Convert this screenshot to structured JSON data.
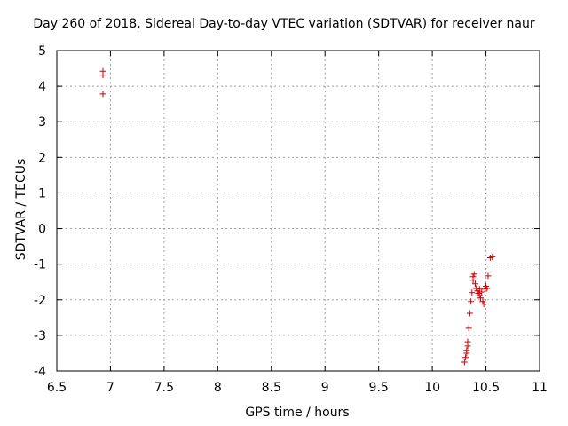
{
  "chart_data": {
    "type": "scatter",
    "title": "Day 260 of 2018, Sidereal Day-to-day VTEC variation (SDTVAR) for receiver naur",
    "xlabel": "GPS time / hours",
    "ylabel": "SDTVAR / TECUs",
    "xlim": [
      6.5,
      11
    ],
    "ylim": [
      -4,
      5
    ],
    "grid": true,
    "xticks": [
      6.5,
      7,
      7.5,
      8,
      8.5,
      9,
      9.5,
      10,
      10.5,
      11
    ],
    "xtick_labels": [
      "6.5",
      "7",
      "7.5",
      "8",
      "8.5",
      "9",
      "9.5",
      "10",
      "10.5",
      "11"
    ],
    "yticks": [
      -4,
      -3,
      -2,
      -1,
      0,
      1,
      2,
      3,
      4,
      5
    ],
    "ytick_labels": [
      "-4",
      "-3",
      "-2",
      "-1",
      "0",
      "1",
      "2",
      "3",
      "4",
      "5"
    ],
    "marker": "+",
    "color": "#cc0000",
    "series": [
      {
        "name": "naur",
        "points": [
          [
            6.93,
            4.42
          ],
          [
            6.93,
            4.31
          ],
          [
            6.93,
            3.78
          ],
          [
            10.3,
            -3.75
          ],
          [
            10.31,
            -3.62
          ],
          [
            10.32,
            -3.5
          ],
          [
            10.32,
            -3.42
          ],
          [
            10.33,
            -3.3
          ],
          [
            10.33,
            -3.18
          ],
          [
            10.34,
            -2.8
          ],
          [
            10.35,
            -2.38
          ],
          [
            10.36,
            -2.05
          ],
          [
            10.37,
            -1.8
          ],
          [
            10.38,
            -1.45
          ],
          [
            10.38,
            -1.35
          ],
          [
            10.39,
            -1.28
          ],
          [
            10.4,
            -1.55
          ],
          [
            10.41,
            -1.68
          ],
          [
            10.42,
            -1.75
          ],
          [
            10.43,
            -1.82
          ],
          [
            10.44,
            -1.88
          ],
          [
            10.44,
            -1.7
          ],
          [
            10.45,
            -1.95
          ],
          [
            10.46,
            -1.78
          ],
          [
            10.47,
            -2.05
          ],
          [
            10.48,
            -2.12
          ],
          [
            10.49,
            -1.7
          ],
          [
            10.5,
            -1.62
          ],
          [
            10.51,
            -1.68
          ],
          [
            10.52,
            -1.33
          ],
          [
            10.54,
            -0.82
          ],
          [
            10.56,
            -0.8
          ]
        ]
      }
    ]
  }
}
